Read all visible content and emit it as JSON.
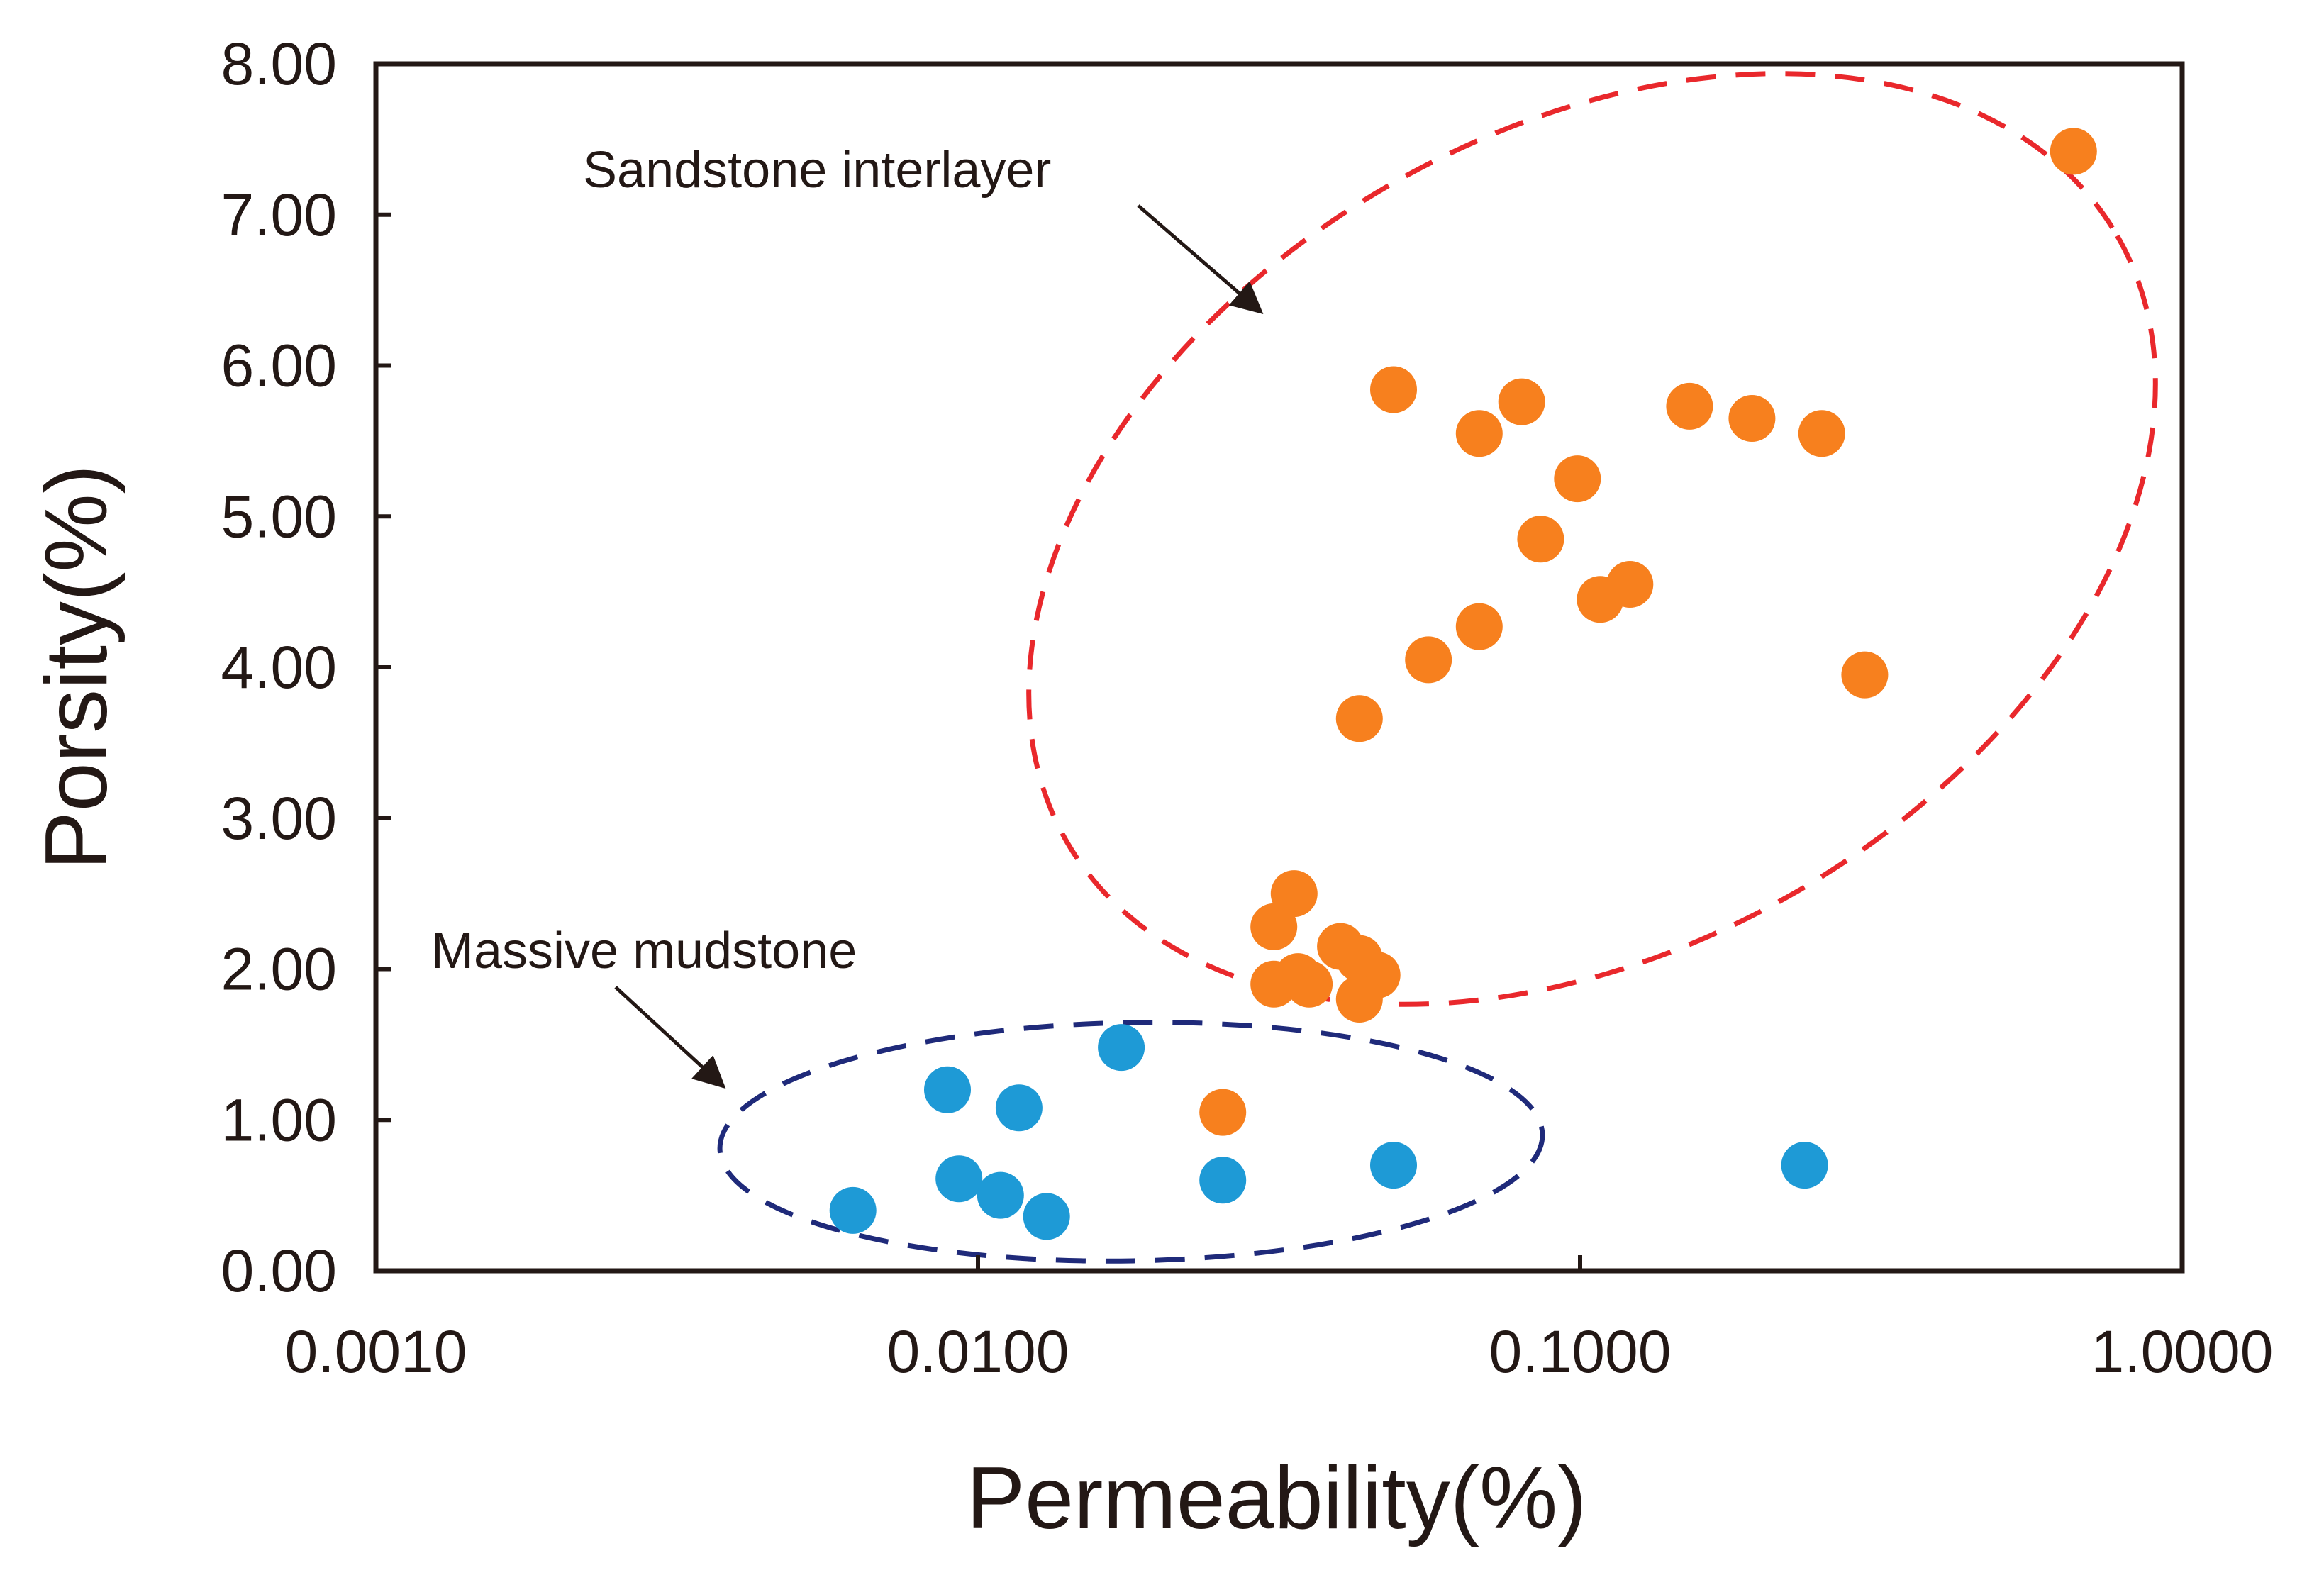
{
  "chart_data": {
    "type": "scatter",
    "title": "",
    "xlabel": "Permeability(%)",
    "ylabel": "Porsity(%)",
    "xscale": "log",
    "xlim": [
      0.001,
      1.0
    ],
    "ylim": [
      0,
      8
    ],
    "grid": false,
    "x_tick_labels": [
      "0.0010",
      "0.0100",
      "0.1000",
      "1.0000"
    ],
    "x_tick_values": [
      0.001,
      0.01,
      0.1,
      1.0
    ],
    "y_tick_labels": [
      "0.00",
      "1.00",
      "2.00",
      "3.00",
      "4.00",
      "5.00",
      "6.00",
      "7.00",
      "8.00"
    ],
    "y_tick_values": [
      0,
      1,
      2,
      3,
      4,
      5,
      6,
      7,
      8
    ],
    "series": [
      {
        "name": "Sandstone interlayer",
        "color": "#f7801e",
        "points": [
          [
            0.66,
            7.42
          ],
          [
            0.049,
            5.84
          ],
          [
            0.068,
            5.55
          ],
          [
            0.08,
            5.76
          ],
          [
            0.152,
            5.73
          ],
          [
            0.193,
            5.65
          ],
          [
            0.252,
            5.55
          ],
          [
            0.099,
            5.25
          ],
          [
            0.086,
            4.85
          ],
          [
            0.108,
            4.45
          ],
          [
            0.121,
            4.55
          ],
          [
            0.068,
            4.27
          ],
          [
            0.056,
            4.05
          ],
          [
            0.297,
            3.95
          ],
          [
            0.043,
            3.66
          ],
          [
            0.0335,
            2.5
          ],
          [
            0.031,
            2.28
          ],
          [
            0.04,
            2.15
          ],
          [
            0.043,
            2.07
          ],
          [
            0.046,
            1.96
          ],
          [
            0.031,
            1.9
          ],
          [
            0.034,
            1.95
          ],
          [
            0.0355,
            1.9
          ],
          [
            0.043,
            1.8
          ],
          [
            0.0255,
            1.05
          ]
        ]
      },
      {
        "name": "Massive mudstone",
        "color": "#1e9ad6",
        "points": [
          [
            0.0089,
            1.2
          ],
          [
            0.0117,
            1.08
          ],
          [
            0.0173,
            1.48
          ],
          [
            0.0093,
            0.61
          ],
          [
            0.0109,
            0.5
          ],
          [
            0.0062,
            0.4
          ],
          [
            0.013,
            0.36
          ],
          [
            0.0255,
            0.6
          ],
          [
            0.049,
            0.7
          ],
          [
            0.236,
            0.7
          ]
        ]
      }
    ],
    "annotations": [
      {
        "text": "Sandstone interlayer",
        "target": "Sandstone interlayer",
        "enclosure_color": "#e9282c"
      },
      {
        "text": "Massive mudstone",
        "target": "Massive mudstone",
        "enclosure_color": "#1f2a7a"
      }
    ]
  }
}
